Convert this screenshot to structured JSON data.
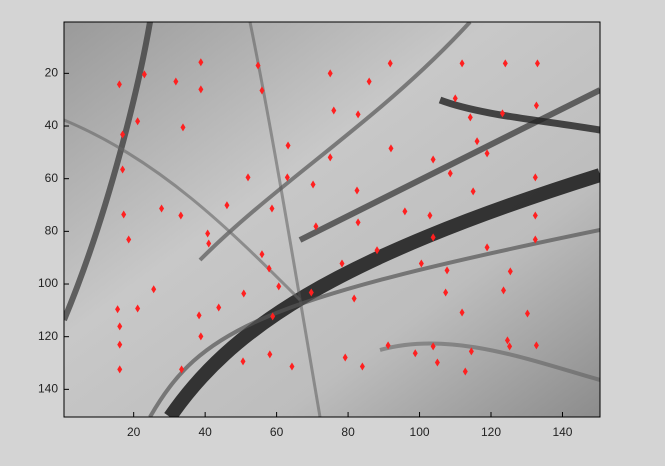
{
  "chart_data": {
    "type": "scatter",
    "x": [
      16,
      23,
      38.8,
      38.8,
      31.8,
      21.1,
      16.9,
      33.8,
      54.8,
      55.9,
      75,
      85.9,
      91.8,
      111.9,
      124,
      133,
      132.7,
      110,
      114.2,
      123.2,
      76,
      82.8,
      63.2,
      75,
      92,
      103.8,
      118.9,
      116.1,
      108.6,
      132.4,
      52,
      63,
      70.2,
      82.5,
      115,
      16.9,
      17.2,
      18.6,
      27.8,
      33.2,
      46.1,
      58.7,
      71,
      82.8,
      95.9,
      102.9,
      103.8,
      132.4,
      132.4,
      40.7,
      41,
      55.9,
      78.3,
      88.1,
      100.5,
      107.7,
      118.9,
      125.4,
      25.6,
      57.9,
      60.6,
      50.8,
      21.1,
      15.5,
      16.1,
      16.1,
      16.1,
      38.3,
      43.8,
      38.8,
      33.4,
      50.6,
      58.9,
      58.1,
      64.3,
      69.7,
      81.7,
      79.2,
      84,
      91.2,
      98.8,
      103.8,
      105,
      107.3,
      111.9,
      112.8,
      123.5,
      124.6,
      125.2,
      130.2,
      132.7,
      114.5
    ],
    "values": [
      24.2,
      20.4,
      15.8,
      26.1,
      23.1,
      38.2,
      43.2,
      40.5,
      17,
      26.5,
      20,
      23.1,
      16.2,
      16.2,
      16.2,
      16.2,
      32.2,
      29.5,
      36.7,
      35.2,
      34.1,
      35.6,
      47.4,
      51.9,
      48.5,
      52.7,
      50.4,
      45.8,
      58,
      59.5,
      59.5,
      59.5,
      62.2,
      64.5,
      64.8,
      56.5,
      73.6,
      83.1,
      71.3,
      74,
      70.1,
      71.3,
      78.1,
      76.6,
      72.4,
      74,
      82.3,
      74,
      83.1,
      80.8,
      84.6,
      88.7,
      92.2,
      87.2,
      92.2,
      94.8,
      86.1,
      95.2,
      102,
      94.1,
      100.9,
      103.6,
      109.3,
      109.6,
      116.1,
      123,
      132.4,
      111.9,
      108.9,
      119.9,
      132.4,
      129.4,
      112.3,
      126.7,
      131.3,
      103.2,
      105.5,
      127.9,
      131.3,
      123.3,
      126.3,
      123.7,
      129.8,
      103.2,
      110.8,
      133.2,
      102.4,
      121.4,
      123.7,
      111.2,
      123.3,
      125.6
    ],
    "color": "#ff2020",
    "xlim": [
      0.5,
      150.5
    ],
    "ylim": [
      0.5,
      150.5
    ],
    "y_reversed": true,
    "xticks": [
      20,
      40,
      60,
      80,
      100,
      120,
      140
    ],
    "yticks": [
      20,
      40,
      60,
      80,
      100,
      120,
      140
    ]
  }
}
